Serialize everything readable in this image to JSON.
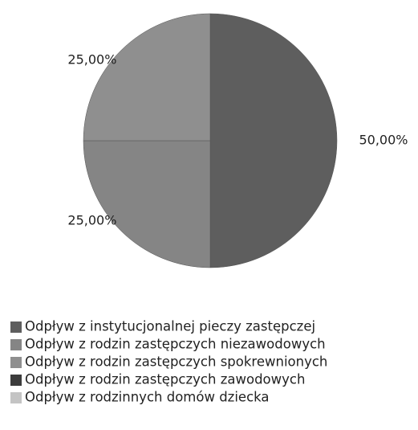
{
  "chart_data": {
    "type": "pie",
    "categories": [
      "Odpływ z instytucjonalnej pieczy zastępczej",
      "Odpływ z rodzin zastępczych niezawodowych",
      "Odpływ z rodzin zastępczych spokrewnionych",
      "Odpływ z rodzin zastępczych zawodowych",
      "Odpływ z rodzinnych domów dziecka"
    ],
    "values": [
      50,
      25,
      25,
      0,
      0
    ],
    "value_labels": [
      "50,00%",
      "25,00%",
      "25,00%",
      null,
      null
    ],
    "colors": [
      "#5e5e5e",
      "#858585",
      "#8f8f8f",
      "#3c3c3c",
      "#c4c4c4"
    ],
    "legend": "bottom"
  }
}
